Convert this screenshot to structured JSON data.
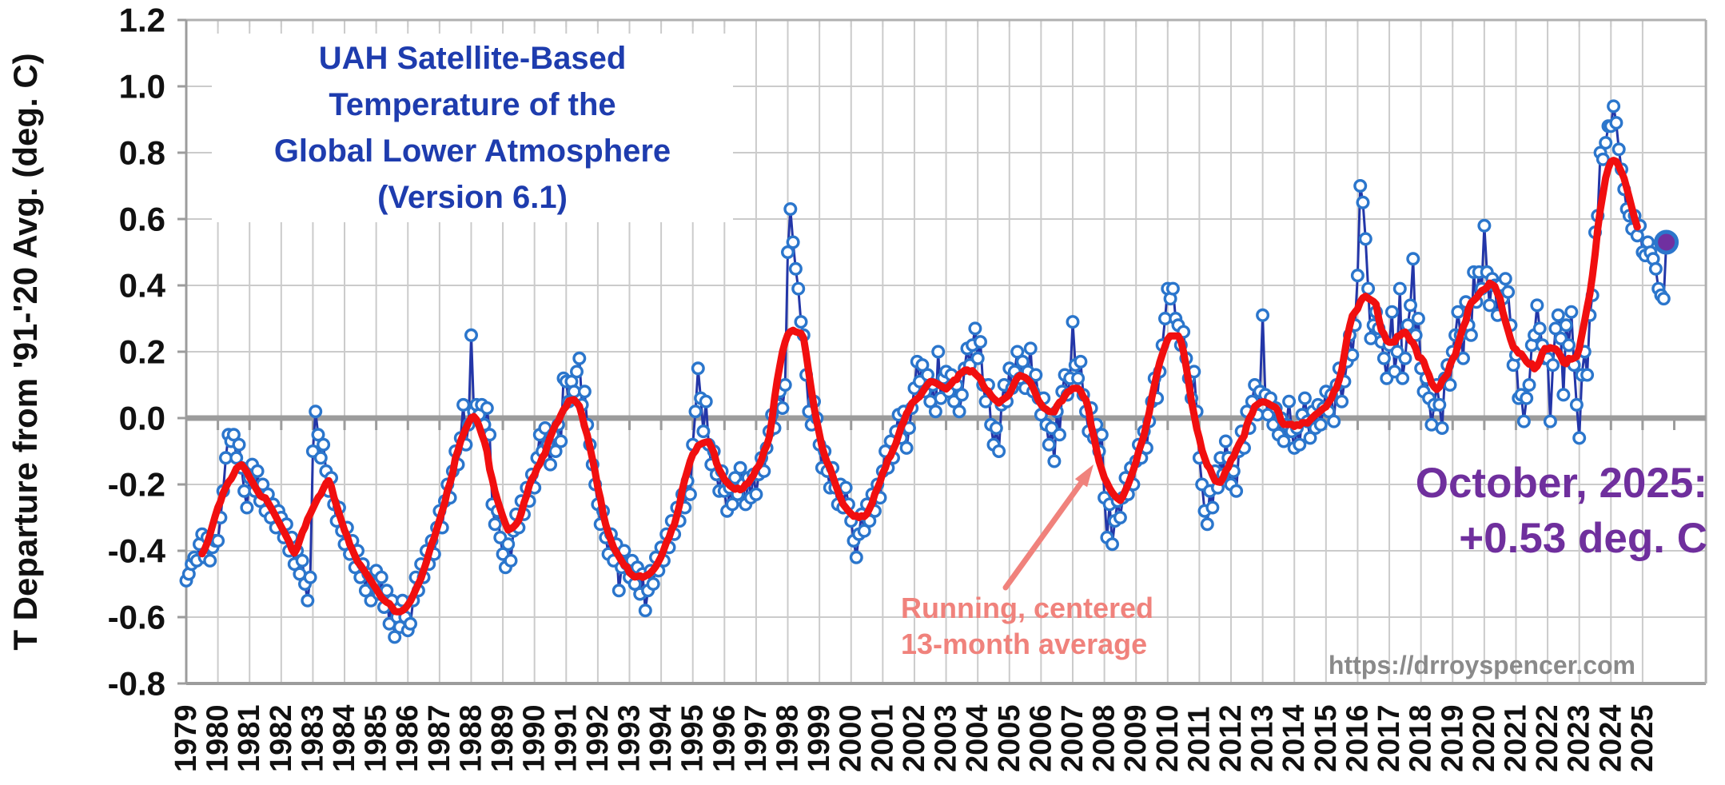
{
  "title": {
    "text": "UAH Satellite-Based\nTemperature of the\nGlobal Lower Atmosphere\n(Version 6.1)",
    "color": "#1e3cae"
  },
  "y_axis": {
    "title": "T Departure from '91-'20 Avg. (deg. C)"
  },
  "annotations": {
    "latest": {
      "text": "October, 2025:\n+0.53 deg. C",
      "color": "#6f2f9d"
    },
    "smoother": {
      "text": "Running, centered\n13-month average",
      "color": "#f0827c"
    },
    "watermark": {
      "text": "https://drroyspencer.com",
      "color": "#8a8a8a"
    }
  },
  "style": {
    "monthly_line": "#2336a8",
    "marker_ring": "#2b76cc",
    "smoother_line": "#f10f0f",
    "final_dot_fill": "#7030a0",
    "gridline": "#cbcbcb",
    "axis_gray": "#9c9c9c",
    "border_gray": "#b0b0b0",
    "label_color": "#111111"
  },
  "chart_data": {
    "type": "line",
    "title": "UAH Satellite-Based Temperature of the Global Lower Atmosphere (Version 6.1)",
    "ylabel": "T Departure from '91-'20 Avg. (deg. C)",
    "ylim": [
      -0.8,
      1.2
    ],
    "y_tick_step": 0.2,
    "y_ticks": [
      "1.2",
      "1.0",
      "0.8",
      "0.6",
      "0.4",
      "0.2",
      "0.0",
      "-0.2",
      "-0.4",
      "-0.6",
      "-0.8"
    ],
    "years": [
      1979,
      1980,
      1981,
      1982,
      1983,
      1984,
      1985,
      1986,
      1987,
      1988,
      1989,
      1990,
      1991,
      1992,
      1993,
      1994,
      1995,
      1996,
      1997,
      1998,
      1999,
      2000,
      2001,
      2002,
      2003,
      2004,
      2005,
      2006,
      2007,
      2008,
      2009,
      2010,
      2011,
      2012,
      2013,
      2014,
      2015,
      2016,
      2017,
      2018,
      2019,
      2020,
      2021,
      2022,
      2023,
      2024,
      2025
    ],
    "grid": true,
    "legend": "none",
    "series": [
      {
        "name": "Monthly temperature anomaly",
        "type": "line+markers"
      },
      {
        "name": "Running, centered 13-month average",
        "type": "smoothed",
        "window": 13
      }
    ],
    "x_start": "1979-01",
    "x_end": "2025-10",
    "latest_point": {
      "label": "October, 2025",
      "value": 0.53
    },
    "monthly_values_by_year": {
      "1979": [
        -0.49,
        -0.47,
        -0.44,
        -0.42,
        -0.43,
        -0.38,
        -0.35,
        -0.42,
        -0.36,
        -0.43,
        -0.39,
        -0.37
      ],
      "1980": [
        -0.37,
        -0.3,
        -0.22,
        -0.12,
        -0.05,
        -0.07,
        -0.05,
        -0.12,
        -0.08,
        -0.15,
        -0.22,
        -0.27
      ],
      "1981": [
        -0.18,
        -0.14,
        -0.22,
        -0.16,
        -0.25,
        -0.2,
        -0.28,
        -0.23,
        -0.3,
        -0.26,
        -0.33,
        -0.28
      ],
      "1982": [
        -0.3,
        -0.36,
        -0.32,
        -0.4,
        -0.36,
        -0.44,
        -0.4,
        -0.47,
        -0.43,
        -0.5,
        -0.55,
        -0.48
      ],
      "1983": [
        -0.1,
        0.02,
        -0.05,
        -0.12,
        -0.08,
        -0.16,
        -0.22,
        -0.18,
        -0.26,
        -0.31,
        -0.27,
        -0.34
      ],
      "1984": [
        -0.38,
        -0.33,
        -0.41,
        -0.37,
        -0.45,
        -0.4,
        -0.48,
        -0.44,
        -0.52,
        -0.47,
        -0.55,
        -0.5
      ],
      "1985": [
        -0.46,
        -0.53,
        -0.48,
        -0.57,
        -0.52,
        -0.62,
        -0.55,
        -0.66,
        -0.6,
        -0.63,
        -0.55,
        -0.6
      ],
      "1986": [
        -0.64,
        -0.62,
        -0.55,
        -0.48,
        -0.52,
        -0.44,
        -0.48,
        -0.4,
        -0.44,
        -0.37,
        -0.41,
        -0.33
      ],
      "1987": [
        -0.28,
        -0.33,
        -0.25,
        -0.2,
        -0.24,
        -0.16,
        -0.1,
        -0.14,
        -0.06,
        0.04,
        -0.08,
        -0.02
      ],
      "1988": [
        0.25,
        0.02,
        0.04,
        0.01,
        0.04,
        -0.02,
        0.03,
        -0.05,
        -0.26,
        -0.32,
        -0.28,
        -0.36
      ],
      "1989": [
        -0.41,
        -0.45,
        -0.38,
        -0.43,
        -0.34,
        -0.29,
        -0.33,
        -0.25,
        -0.29,
        -0.21,
        -0.25,
        -0.17
      ],
      "1990": [
        -0.21,
        -0.12,
        -0.05,
        -0.1,
        -0.03,
        -0.08,
        -0.14,
        -0.05,
        -0.1,
        -0.02,
        -0.07,
        0.12
      ],
      "1991": [
        0.11,
        0.05,
        0.11,
        0.08,
        0.14,
        0.18,
        0.04,
        0.08,
        -0.02,
        -0.08,
        -0.14,
        -0.2
      ],
      "1992": [
        -0.26,
        -0.32,
        -0.28,
        -0.36,
        -0.41,
        -0.35,
        -0.43,
        -0.38,
        -0.52,
        -0.45,
        -0.4,
        -0.44
      ],
      "1993": [
        -0.48,
        -0.43,
        -0.5,
        -0.45,
        -0.53,
        -0.47,
        -0.58,
        -0.52,
        -0.46,
        -0.5,
        -0.42,
        -0.46
      ],
      "1994": [
        -0.39,
        -0.43,
        -0.35,
        -0.39,
        -0.31,
        -0.35,
        -0.27,
        -0.31,
        -0.23,
        -0.27,
        -0.19,
        -0.23
      ],
      "1995": [
        -0.08,
        0.02,
        0.15,
        0.06,
        -0.04,
        0.05,
        -0.08,
        -0.14,
        -0.1,
        -0.17,
        -0.22,
        -0.16
      ],
      "1996": [
        -0.22,
        -0.28,
        -0.21,
        -0.26,
        -0.18,
        -0.23,
        -0.15,
        -0.2,
        -0.26,
        -0.18,
        -0.24,
        -0.17
      ],
      "1997": [
        -0.23,
        -0.17,
        -0.12,
        -0.16,
        -0.09,
        -0.04,
        0.01,
        -0.03,
        0.04,
        0.08,
        0.03,
        0.1
      ],
      "1998": [
        0.5,
        0.63,
        0.53,
        0.45,
        0.39,
        0.29,
        0.25,
        0.13,
        0.02,
        -0.02,
        0.05,
        0.0
      ],
      "1999": [
        -0.08,
        -0.15,
        -0.1,
        -0.16,
        -0.21,
        -0.15,
        -0.21,
        -0.26,
        -0.2,
        -0.27,
        -0.21,
        -0.26
      ],
      "2000": [
        -0.31,
        -0.37,
        -0.42,
        -0.35,
        -0.29,
        -0.34,
        -0.26,
        -0.31,
        -0.23,
        -0.28,
        -0.2,
        -0.24
      ],
      "2001": [
        -0.16,
        -0.1,
        -0.15,
        -0.07,
        -0.12,
        -0.04,
        0.01,
        -0.06,
        0.02,
        -0.09,
        -0.03,
        0.03
      ],
      "2002": [
        0.09,
        0.17,
        0.11,
        0.16,
        0.08,
        0.13,
        0.05,
        0.1,
        0.02,
        0.2,
        0.06,
        0.12
      ],
      "2003": [
        0.14,
        0.08,
        0.13,
        0.05,
        0.1,
        0.02,
        0.07,
        0.15,
        0.21,
        0.16,
        0.22,
        0.27
      ],
      "2004": [
        0.18,
        0.23,
        0.1,
        0.05,
        0.1,
        -0.02,
        -0.08,
        -0.03,
        -0.1,
        0.04,
        0.1,
        0.05
      ],
      "2005": [
        0.15,
        0.09,
        0.14,
        0.2,
        0.12,
        0.17,
        0.09,
        0.14,
        0.21,
        0.08,
        0.13,
        0.06
      ],
      "2006": [
        0.01,
        0.06,
        -0.02,
        -0.08,
        -0.03,
        -0.13,
        0.02,
        -0.05,
        0.08,
        0.13,
        0.07,
        0.12
      ],
      "2007": [
        0.29,
        0.16,
        0.12,
        0.17,
        0.07,
        0.02,
        -0.04,
        0.03,
        -0.06,
        -0.02,
        -0.1,
        -0.05
      ],
      "2008": [
        -0.24,
        -0.36,
        -0.26,
        -0.38,
        -0.31,
        -0.25,
        -0.3,
        -0.24,
        -0.18,
        -0.23,
        -0.15,
        -0.2
      ],
      "2009": [
        -0.13,
        -0.08,
        -0.12,
        -0.04,
        -0.09,
        -0.01,
        0.05,
        0.12,
        0.06,
        0.14,
        0.22,
        0.3
      ],
      "2010": [
        0.39,
        0.36,
        0.39,
        0.3,
        0.28,
        0.22,
        0.26,
        0.18,
        0.12,
        0.06,
        0.14,
        0.02
      ],
      "2011": [
        -0.12,
        -0.2,
        -0.28,
        -0.32,
        -0.22,
        -0.27,
        -0.16,
        -0.21,
        -0.12,
        -0.17,
        -0.07,
        -0.12
      ],
      "2012": [
        -0.2,
        -0.16,
        -0.22,
        -0.1,
        -0.04,
        -0.09,
        0.02,
        -0.03,
        0.05,
        0.1,
        0.01,
        0.08
      ],
      "2013": [
        0.31,
        0.07,
        0.01,
        0.06,
        -0.02,
        0.03,
        -0.05,
        0.0,
        -0.07,
        -0.02,
        0.05,
        -0.04
      ],
      "2014": [
        -0.09,
        -0.03,
        -0.08,
        0.01,
        0.06,
        -0.01,
        -0.06,
        0.02,
        -0.03,
        0.04,
        -0.02,
        0.03
      ],
      "2015": [
        0.08,
        0.02,
        0.07,
        -0.01,
        0.1,
        0.15,
        0.05,
        0.11,
        0.17,
        0.25,
        0.19,
        0.28
      ],
      "2016": [
        0.43,
        0.7,
        0.65,
        0.54,
        0.39,
        0.24,
        0.28,
        0.32,
        0.27,
        0.23,
        0.18,
        0.12
      ],
      "2017": [
        0.22,
        0.32,
        0.14,
        0.2,
        0.39,
        0.12,
        0.18,
        0.28,
        0.34,
        0.48,
        0.25,
        0.3
      ],
      "2018": [
        0.15,
        0.08,
        0.12,
        0.06,
        -0.02,
        0.04,
        0.1,
        0.04,
        -0.03,
        0.12,
        0.16,
        0.1
      ],
      "2019": [
        0.2,
        0.25,
        0.32,
        0.25,
        0.18,
        0.35,
        0.28,
        0.25,
        0.44,
        0.35,
        0.44,
        0.39
      ],
      "2020": [
        0.58,
        0.44,
        0.34,
        0.42,
        0.4,
        0.31,
        0.4,
        0.36,
        0.42,
        0.38,
        0.28,
        0.16
      ],
      "2021": [
        0.19,
        0.06,
        0.07,
        -0.01,
        0.06,
        0.1,
        0.22,
        0.25,
        0.34,
        0.27,
        0.22,
        0.18
      ],
      "2022": [
        0.18,
        -0.01,
        0.16,
        0.27,
        0.31,
        0.24,
        0.07,
        0.28,
        0.22,
        0.32,
        0.16,
        0.04
      ],
      "2023": [
        -0.06,
        0.13,
        0.2,
        0.13,
        0.31,
        0.37,
        0.56,
        0.61,
        0.8,
        0.78,
        0.83,
        0.88
      ],
      "2024": [
        0.88,
        0.94,
        0.89,
        0.81,
        0.75,
        0.69,
        0.63,
        0.61,
        0.57,
        0.61,
        0.55,
        0.58
      ],
      "2025": [
        0.5,
        0.49,
        0.53,
        0.5,
        0.48,
        0.45,
        0.39,
        0.37,
        0.36,
        0.53
      ]
    }
  }
}
